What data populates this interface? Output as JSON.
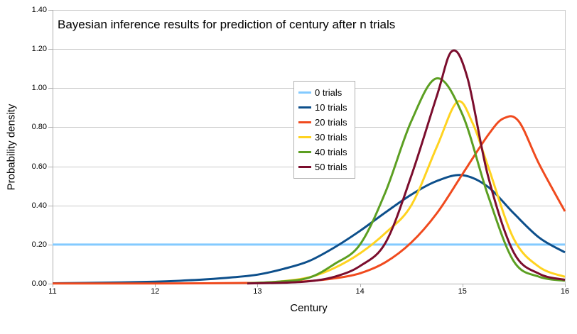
{
  "chart_data": {
    "type": "line",
    "title": "Bayesian inference results for prediction of century after n trials",
    "xlabel": "Century",
    "ylabel": "Probability density",
    "xlim": [
      11,
      16
    ],
    "ylim": [
      0,
      1.4
    ],
    "x_ticks": [
      "11",
      "12",
      "13",
      "14",
      "15",
      "16"
    ],
    "y_ticks": [
      "0.00",
      "0.20",
      "0.40",
      "0.60",
      "0.80",
      "1.00",
      "1.20",
      "1.40"
    ],
    "grid": "horizontal",
    "legend_position": "upper-center-inside",
    "series": [
      {
        "name": "0 trials",
        "color": "#83CAFF",
        "points": [
          [
            11.0,
            0.2
          ],
          [
            11.5,
            0.2
          ],
          [
            12.0,
            0.2
          ],
          [
            12.5,
            0.2
          ],
          [
            13.0,
            0.2
          ],
          [
            13.5,
            0.2
          ],
          [
            14.0,
            0.2
          ],
          [
            14.5,
            0.2
          ],
          [
            15.0,
            0.2
          ],
          [
            15.5,
            0.2
          ],
          [
            16.0,
            0.2
          ]
        ]
      },
      {
        "name": "10 trials",
        "color": "#0D4F8B",
        "points": [
          [
            11.0,
            0.002
          ],
          [
            11.5,
            0.005
          ],
          [
            12.0,
            0.01
          ],
          [
            12.25,
            0.015
          ],
          [
            12.5,
            0.022
          ],
          [
            12.75,
            0.032
          ],
          [
            13.0,
            0.046
          ],
          [
            13.25,
            0.075
          ],
          [
            13.5,
            0.115
          ],
          [
            13.75,
            0.185
          ],
          [
            14.0,
            0.27
          ],
          [
            14.25,
            0.365
          ],
          [
            14.5,
            0.455
          ],
          [
            14.75,
            0.525
          ],
          [
            15.0,
            0.555
          ],
          [
            15.25,
            0.495
          ],
          [
            15.5,
            0.36
          ],
          [
            15.75,
            0.235
          ],
          [
            16.0,
            0.16
          ]
        ]
      },
      {
        "name": "20 trials",
        "color": "#F04A1E",
        "points": [
          [
            11.0,
            0.001
          ],
          [
            11.5,
            0.001
          ],
          [
            12.0,
            0.001
          ],
          [
            12.5,
            0.002
          ],
          [
            13.0,
            0.004
          ],
          [
            13.25,
            0.007
          ],
          [
            13.5,
            0.013
          ],
          [
            13.75,
            0.027
          ],
          [
            14.0,
            0.053
          ],
          [
            14.25,
            0.11
          ],
          [
            14.5,
            0.21
          ],
          [
            14.75,
            0.36
          ],
          [
            15.0,
            0.56
          ],
          [
            15.25,
            0.76
          ],
          [
            15.4,
            0.845
          ],
          [
            15.55,
            0.83
          ],
          [
            15.75,
            0.61
          ],
          [
            16.0,
            0.37
          ]
        ]
      },
      {
        "name": "30 trials",
        "color": "#FFD320",
        "points": [
          [
            12.9,
            0.002
          ],
          [
            13.2,
            0.01
          ],
          [
            13.5,
            0.032
          ],
          [
            13.75,
            0.08
          ],
          [
            14.0,
            0.155
          ],
          [
            14.25,
            0.26
          ],
          [
            14.5,
            0.4
          ],
          [
            14.75,
            0.7
          ],
          [
            14.95,
            0.93
          ],
          [
            15.1,
            0.82
          ],
          [
            15.25,
            0.6
          ],
          [
            15.5,
            0.23
          ],
          [
            15.75,
            0.085
          ],
          [
            16.0,
            0.035
          ]
        ]
      },
      {
        "name": "40 trials",
        "color": "#5C9F22",
        "points": [
          [
            12.9,
            0.002
          ],
          [
            13.2,
            0.01
          ],
          [
            13.5,
            0.03
          ],
          [
            13.75,
            0.1
          ],
          [
            14.0,
            0.2
          ],
          [
            14.25,
            0.47
          ],
          [
            14.5,
            0.83
          ],
          [
            14.75,
            1.05
          ],
          [
            15.0,
            0.865
          ],
          [
            15.25,
            0.45
          ],
          [
            15.5,
            0.115
          ],
          [
            15.75,
            0.035
          ],
          [
            16.0,
            0.015
          ]
        ]
      },
      {
        "name": "50 trials",
        "color": "#7B0D2D",
        "points": [
          [
            12.9,
            0.001
          ],
          [
            13.25,
            0.005
          ],
          [
            13.5,
            0.012
          ],
          [
            13.75,
            0.035
          ],
          [
            14.0,
            0.09
          ],
          [
            14.25,
            0.21
          ],
          [
            14.5,
            0.55
          ],
          [
            14.75,
            0.96
          ],
          [
            14.9,
            1.19
          ],
          [
            15.05,
            1.05
          ],
          [
            15.25,
            0.55
          ],
          [
            15.5,
            0.16
          ],
          [
            15.75,
            0.05
          ],
          [
            16.0,
            0.02
          ]
        ]
      }
    ]
  },
  "style": {
    "grid_color": "#C9C9C9",
    "axis_color": "#AFAFAF",
    "background": "#FFFFFF",
    "legend_border": "#B0B0B0"
  }
}
